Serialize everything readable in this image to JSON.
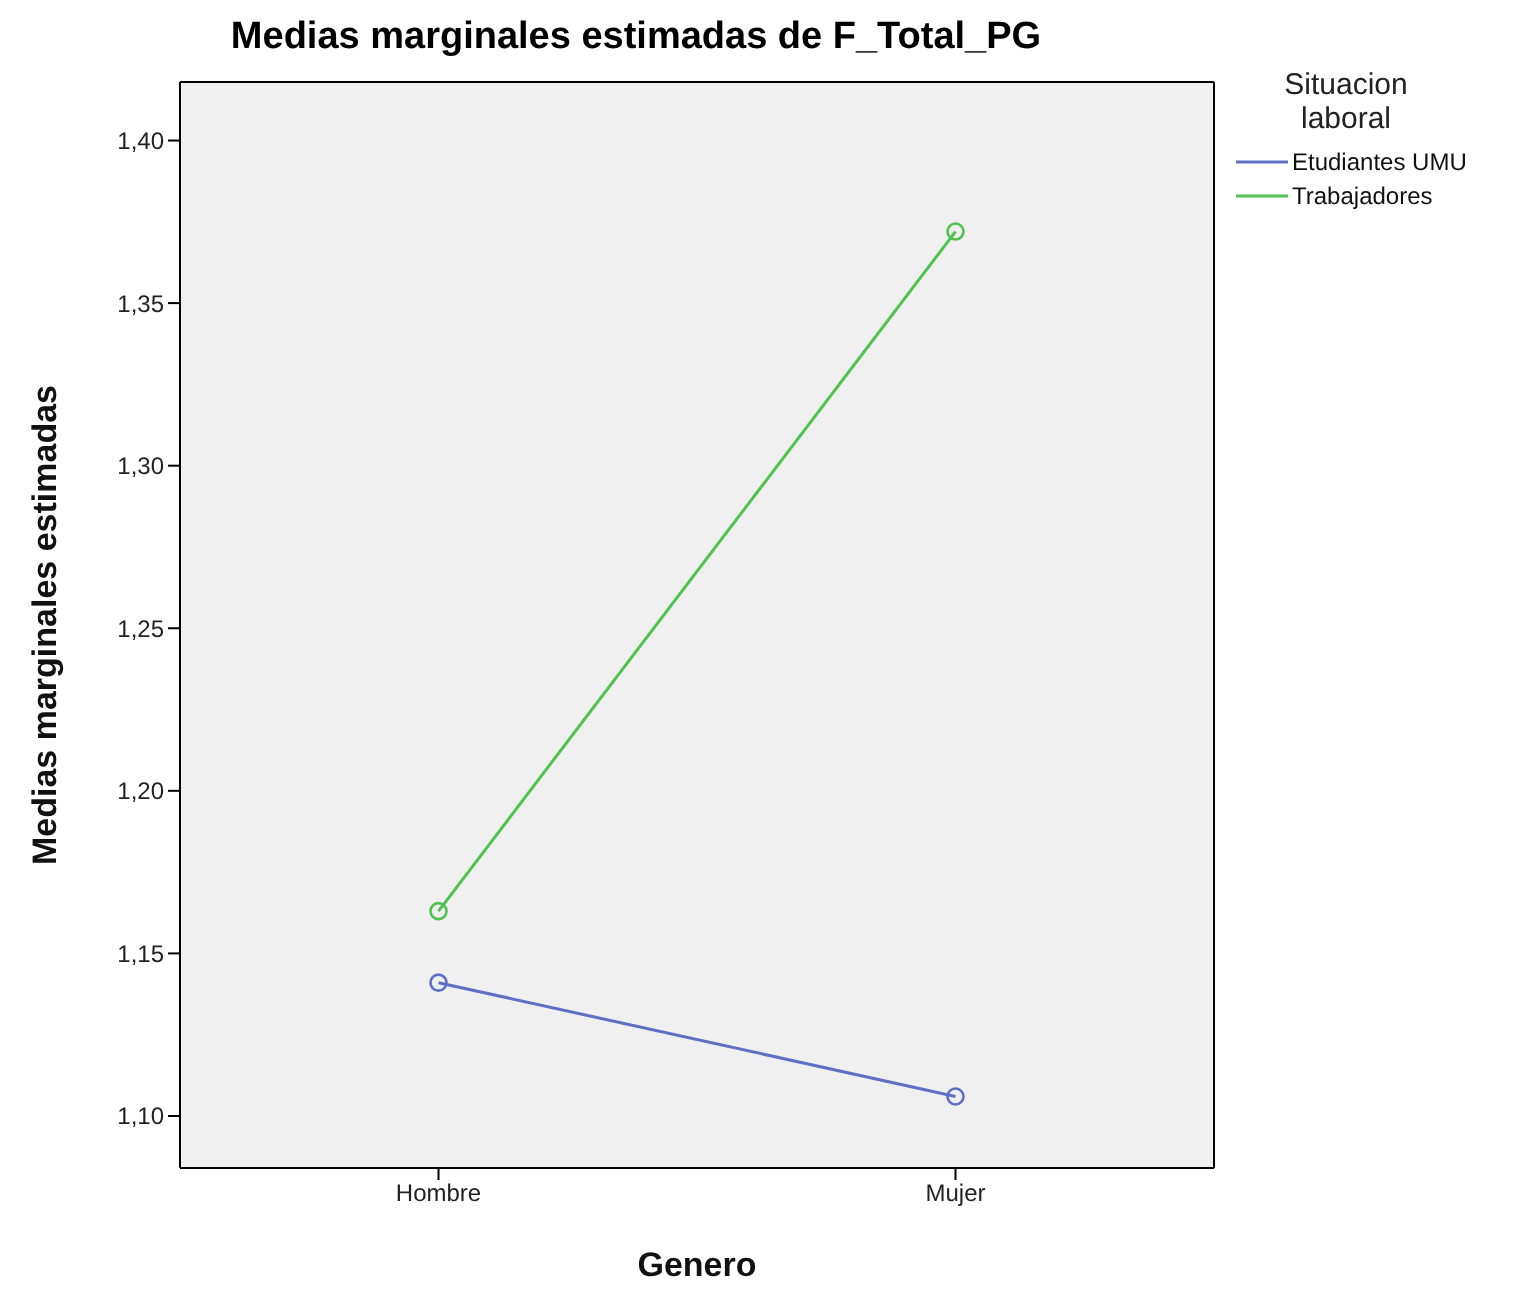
{
  "chart_data": {
    "type": "line",
    "title": "Medias marginales estimadas de F_Total_PG",
    "xlabel": "Genero",
    "ylabel": "Medias marginales estimadas",
    "legend_title": "Situacion laboral",
    "categories": [
      "Hombre",
      "Mujer"
    ],
    "series": [
      {
        "name": "Etudiantes UMU",
        "color": "#5f6fc6",
        "values": [
          1.141,
          1.106
        ]
      },
      {
        "name": "Trabajadores",
        "color": "#4fc24f",
        "values": [
          1.163,
          1.372
        ]
      }
    ],
    "ylim": [
      1.084,
      1.418
    ],
    "yticks": [
      {
        "value": 1.1,
        "label": "1,10"
      },
      {
        "value": 1.15,
        "label": "1,15"
      },
      {
        "value": 1.2,
        "label": "1,20"
      },
      {
        "value": 1.25,
        "label": "1,25"
      },
      {
        "value": 1.3,
        "label": "1,30"
      },
      {
        "value": 1.35,
        "label": "1,35"
      },
      {
        "value": 1.4,
        "label": "1,40"
      }
    ],
    "grid": false,
    "legend": "right",
    "marker": "circle",
    "line_style": "solid"
  }
}
